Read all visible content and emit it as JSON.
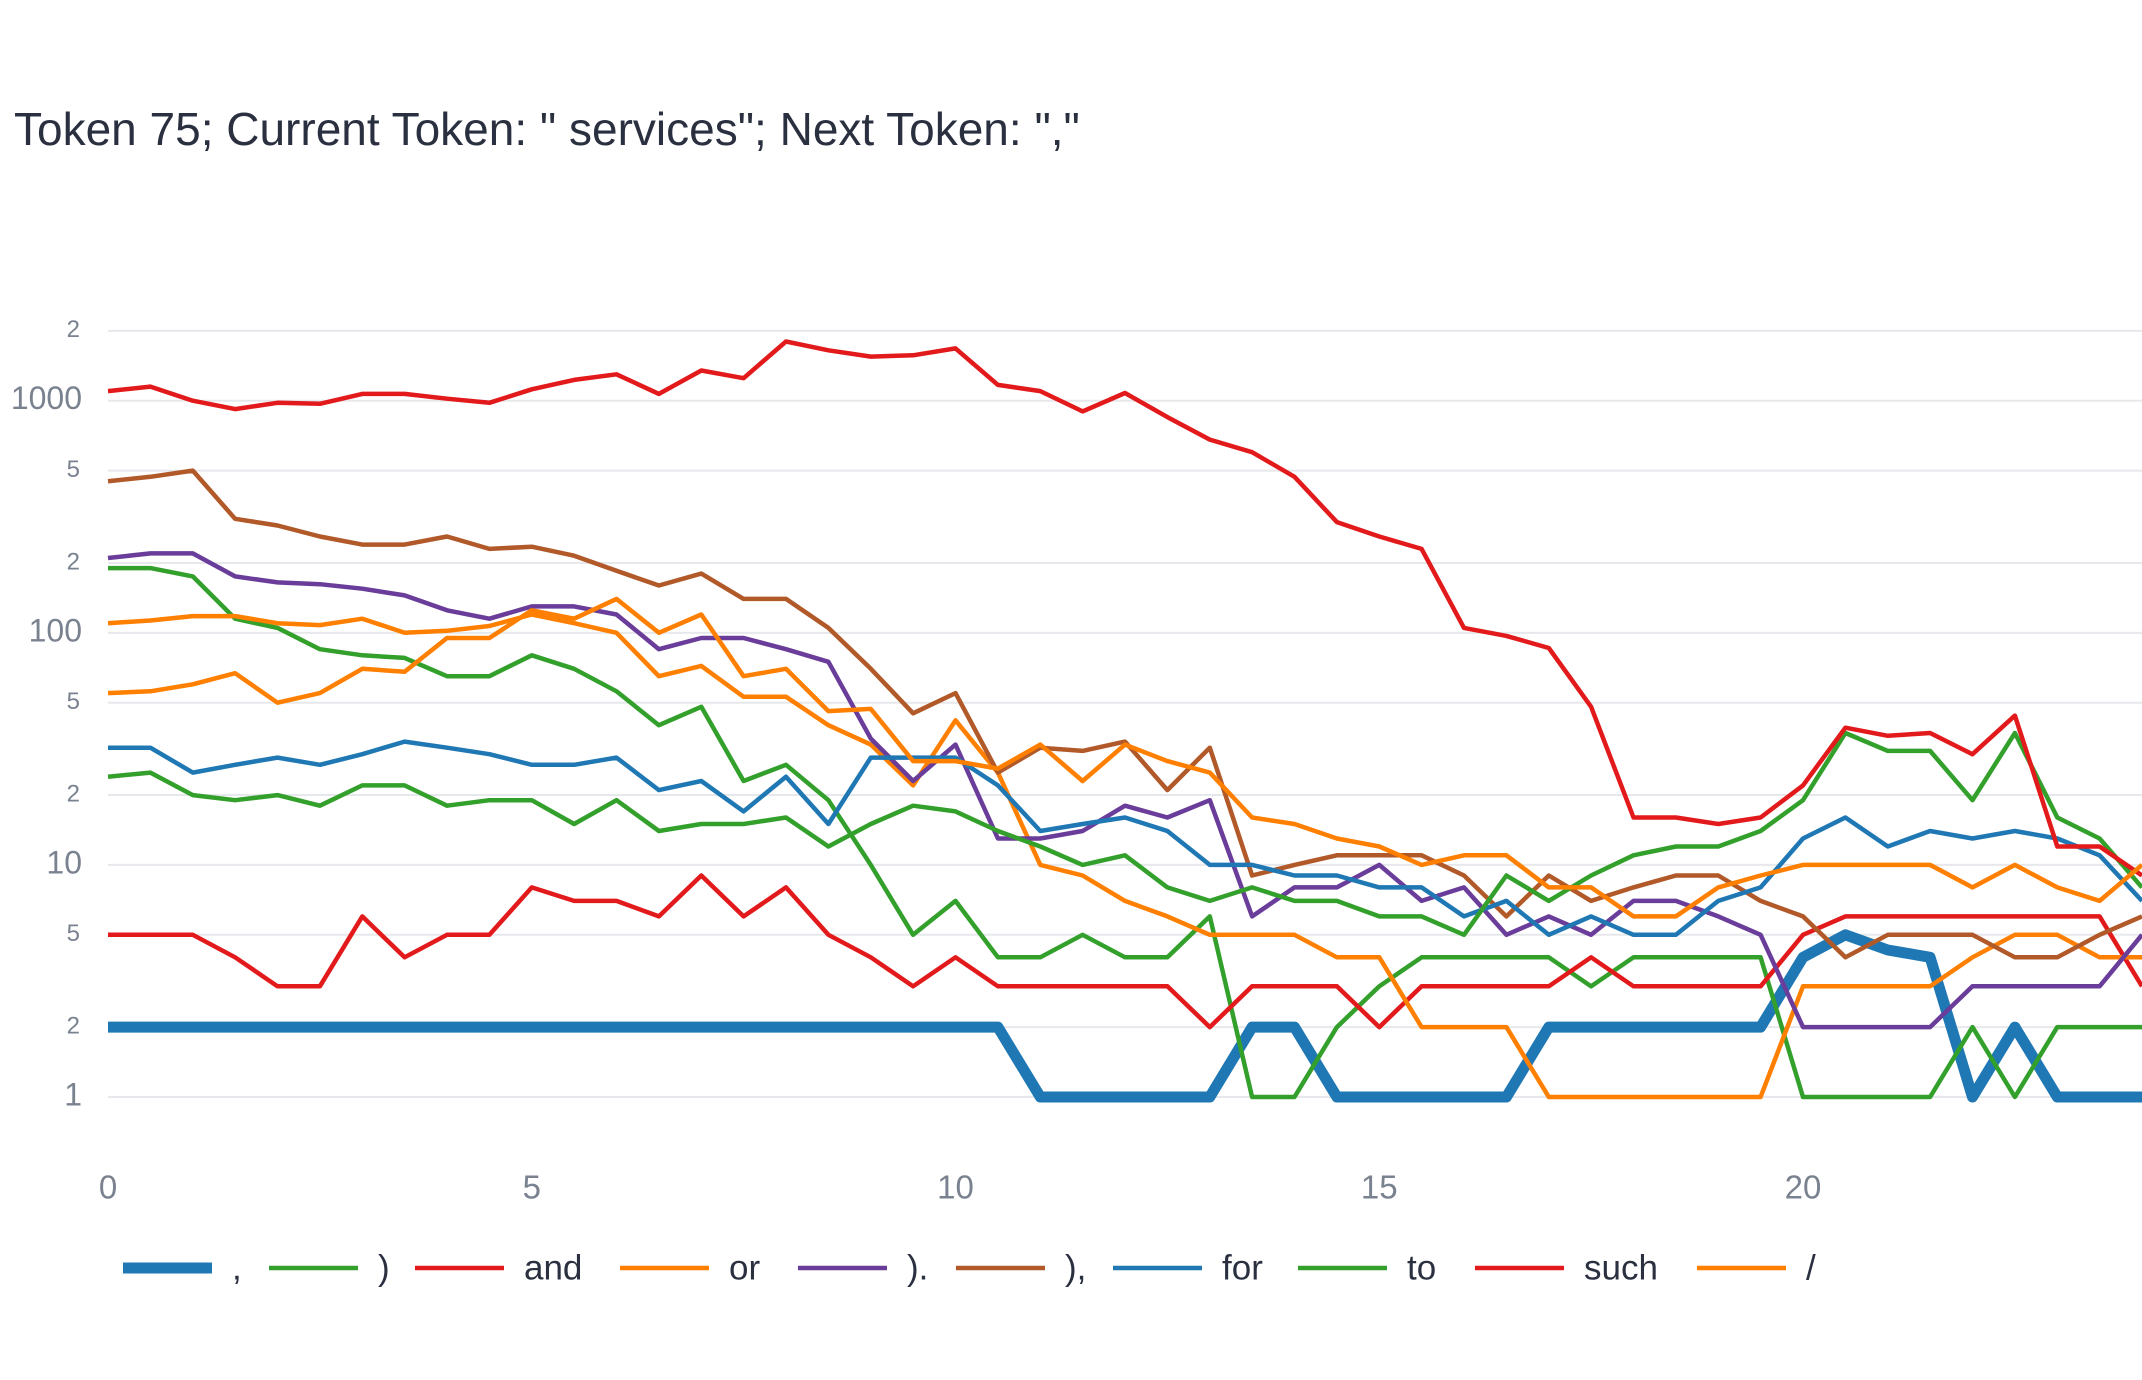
{
  "chart_data": {
    "type": "line",
    "title": "Token 75; Current Token: \" services\"; Next Token: \",\"",
    "log_y": true,
    "grid": true,
    "legend": "bottom",
    "x": [
      0,
      0.5,
      1,
      1.5,
      2,
      2.5,
      3,
      3.5,
      4,
      4.5,
      5,
      5.5,
      6,
      6.5,
      7,
      7.5,
      8,
      8.5,
      9,
      9.5,
      10,
      10.5,
      11,
      11.5,
      12,
      12.5,
      13,
      13.5,
      14,
      14.5,
      15,
      15.5,
      16,
      16.5,
      17,
      17.5,
      18,
      18.5,
      19,
      19.5,
      20,
      20.5,
      21,
      21.5,
      22,
      22.5,
      23,
      23.5,
      24
    ],
    "xlim": [
      0,
      24
    ],
    "xticks": [
      0,
      5,
      10,
      15,
      20
    ],
    "ylim": [
      0.6,
      3000
    ],
    "yticks": [
      1,
      {
        "value": 2,
        "label": "2"
      },
      {
        "value": 5,
        "label": "5"
      },
      10,
      {
        "value": 20,
        "label": "2"
      },
      {
        "value": 50,
        "label": "5"
      },
      100,
      {
        "value": 200,
        "label": "2"
      },
      {
        "value": 500,
        "label": "5"
      },
      1000,
      {
        "value": 2000,
        "label": "2"
      }
    ],
    "series": [
      {
        "name": ",",
        "color": "#1f78b4",
        "values": [
          2,
          2,
          2,
          2,
          2,
          2,
          2,
          2,
          2,
          2,
          2,
          2,
          2,
          2,
          2,
          2,
          2,
          2,
          2,
          2,
          2,
          2,
          1,
          1,
          1,
          1,
          1,
          2,
          2,
          1,
          1,
          1,
          1,
          1,
          2,
          2,
          2,
          2,
          2,
          2,
          4,
          5,
          4.3,
          4,
          1,
          2,
          1,
          1,
          1
        ]
      },
      {
        "name": ")",
        "color": "#33a02c",
        "values": [
          190,
          190,
          175,
          115,
          105,
          85,
          80,
          78,
          65,
          65,
          80,
          70,
          56,
          40,
          48,
          23,
          27,
          19,
          10,
          5,
          7,
          4,
          4,
          5,
          4,
          4,
          6,
          1,
          1,
          2,
          3,
          4,
          4,
          4,
          4,
          3,
          4,
          4,
          4,
          4,
          1,
          1,
          1,
          1,
          2,
          1,
          2,
          2,
          2
        ]
      },
      {
        "name": "and",
        "color": "#e31a1c",
        "values": [
          5,
          5,
          5,
          4,
          3,
          3,
          6,
          4,
          5,
          5,
          8,
          7,
          7,
          6,
          9,
          6,
          8,
          5,
          4,
          3,
          4,
          3,
          3,
          3,
          3,
          3,
          2,
          3,
          3,
          3,
          2,
          3,
          3,
          3,
          3,
          4,
          3,
          3,
          3,
          3,
          5,
          6,
          6,
          6,
          6,
          6,
          6,
          6,
          3
        ]
      },
      {
        "name": "or",
        "color": "#ff7f00",
        "values": [
          110,
          113,
          118,
          118,
          110,
          108,
          115,
          100,
          102,
          107,
          120,
          110,
          100,
          65,
          72,
          53,
          53,
          40,
          33,
          22,
          42,
          25,
          10,
          9,
          7,
          6,
          5,
          5,
          5,
          4,
          4,
          2,
          2,
          2,
          1,
          1,
          1,
          1,
          1,
          1,
          3,
          3,
          3,
          3,
          4,
          5,
          5,
          4,
          4
        ]
      },
      {
        "name": ").",
        "color": "#6a3d9a",
        "values": [
          210,
          220,
          220,
          175,
          165,
          162,
          155,
          145,
          125,
          115,
          130,
          130,
          120,
          85,
          95,
          95,
          85,
          75,
          35,
          23,
          33,
          13,
          13,
          14,
          18,
          16,
          19,
          6,
          8,
          8,
          10,
          7,
          8,
          5,
          6,
          5,
          7,
          7,
          6,
          5,
          2,
          2,
          2,
          2,
          3,
          3,
          3,
          3,
          5
        ]
      },
      {
        "name": "),",
        "color": "#b15928",
        "values": [
          450,
          470,
          500,
          310,
          290,
          260,
          240,
          240,
          260,
          230,
          235,
          215,
          185,
          160,
          180,
          140,
          140,
          105,
          70,
          45,
          55,
          25,
          32,
          31,
          34,
          21,
          32,
          9,
          10,
          11,
          11,
          11,
          9,
          6,
          9,
          7,
          8,
          9,
          9,
          7,
          6,
          4,
          5,
          5,
          5,
          4,
          4,
          5,
          6
        ]
      },
      {
        "name": "for",
        "color": "#1f78b4",
        "values": [
          32,
          32,
          25,
          27,
          29,
          27,
          30,
          34,
          32,
          30,
          27,
          27,
          29,
          21,
          23,
          17,
          24,
          15,
          29,
          29,
          29,
          22,
          14,
          15,
          16,
          14,
          10,
          10,
          9,
          9,
          8,
          8,
          6,
          7,
          5,
          6,
          5,
          5,
          7,
          8,
          13,
          16,
          12,
          14,
          13,
          14,
          13,
          11,
          7
        ]
      },
      {
        "name": "to",
        "color": "#33a02c",
        "values": [
          24,
          25,
          20,
          19,
          20,
          18,
          22,
          22,
          18,
          19,
          19,
          15,
          19,
          14,
          15,
          15,
          16,
          12,
          15,
          18,
          17,
          14,
          12,
          10,
          11,
          8,
          7,
          8,
          7,
          7,
          6,
          6,
          5,
          9,
          7,
          9,
          11,
          12,
          12,
          14,
          19,
          37,
          31,
          31,
          19,
          37,
          16,
          13,
          8
        ]
      },
      {
        "name": "such",
        "color": "#e31a1c",
        "values": [
          1100,
          1150,
          1000,
          920,
          980,
          970,
          1070,
          1070,
          1020,
          980,
          1120,
          1230,
          1300,
          1070,
          1350,
          1250,
          1800,
          1650,
          1550,
          1570,
          1680,
          1170,
          1100,
          900,
          1080,
          850,
          680,
          600,
          470,
          300,
          260,
          230,
          105,
          97,
          86,
          48,
          16,
          16,
          15,
          16,
          22,
          39,
          36,
          37,
          30,
          44,
          12,
          12,
          9
        ]
      },
      {
        "name": "/",
        "color": "#ff7f00",
        "values": [
          55,
          56,
          60,
          67,
          50,
          55,
          70,
          68,
          95,
          95,
          125,
          115,
          140,
          100,
          120,
          65,
          70,
          46,
          47,
          28,
          28,
          26,
          33,
          23,
          33,
          28,
          25,
          16,
          15,
          13,
          12,
          10,
          11,
          11,
          8,
          8,
          6,
          6,
          8,
          9,
          10,
          10,
          10,
          10,
          8,
          10,
          8,
          7,
          10
        ]
      }
    ]
  }
}
